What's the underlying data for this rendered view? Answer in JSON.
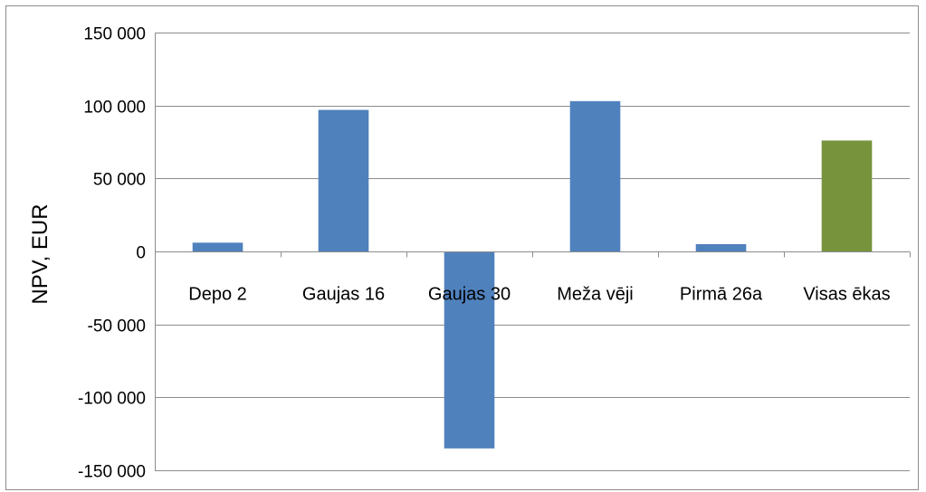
{
  "chart_data": {
    "type": "bar",
    "title": "",
    "xlabel": "",
    "ylabel": "NPV, EUR",
    "ylim": [
      -150000,
      150000
    ],
    "yticks": [
      150000,
      100000,
      50000,
      0,
      -50000,
      -100000,
      -150000
    ],
    "ytick_labels": [
      "150 000",
      "100 000",
      "50 000",
      "0",
      "-50 000",
      "-100 000",
      "-150 000"
    ],
    "grid": true,
    "legend": "none",
    "categories": [
      "Depo 2",
      "Gaujas 16",
      "Gaujas 30",
      "Meža vēji",
      "Pirmā 26a",
      "Visas ēkas"
    ],
    "values": [
      6000,
      97000,
      -135000,
      103000,
      5000,
      76000
    ],
    "colors": [
      "#4f81bd",
      "#4f81bd",
      "#4f81bd",
      "#4f81bd",
      "#4f81bd",
      "#77933c"
    ]
  }
}
